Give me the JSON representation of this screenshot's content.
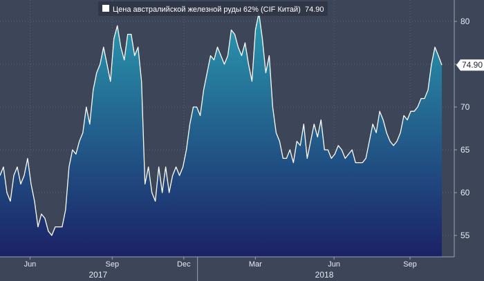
{
  "chart_data": {
    "type": "area",
    "title": "",
    "xlabel": "",
    "ylabel": "",
    "ylim": [
      52.5,
      82.5
    ],
    "yticks": [
      55,
      60,
      65,
      70,
      75,
      80
    ],
    "grid": "dotted",
    "legend": {
      "position": "top-left",
      "label": "Цена австралийской железной руды 62% (CIF Китай)",
      "value": "74.90"
    },
    "last_value_label": "74.90",
    "colors": {
      "background": "#3d4658",
      "area_top": "#2a9ab0",
      "area_bottom": "#1b2166",
      "line": "#ffffff",
      "axis_text": "#e8ebf2"
    },
    "x_ticks": [
      {
        "label": "Jun",
        "t": 0.068
      },
      {
        "label": "Sep",
        "t": 0.254
      },
      {
        "label": "Dec",
        "t": 0.416
      },
      {
        "label": "Mar",
        "t": 0.578
      },
      {
        "label": "Jun",
        "t": 0.756
      },
      {
        "label": "Sep",
        "t": 0.928
      }
    ],
    "year_labels": [
      {
        "label": "2017",
        "t": 0.222
      },
      {
        "label": "2018",
        "t": 0.734
      }
    ],
    "year_separator_t": 0.447,
    "series": [
      {
        "values": [
          62,
          63,
          60,
          59,
          62,
          63,
          61,
          62,
          64,
          61,
          59,
          56,
          57.5,
          57,
          55.5,
          55,
          56,
          56,
          56,
          58,
          63,
          65,
          64.5,
          66,
          67,
          70,
          68,
          72,
          74,
          75,
          77,
          75,
          73,
          78,
          79.5,
          77,
          75.5,
          78.5,
          78.5,
          76,
          77,
          73,
          61,
          63,
          60,
          59,
          63,
          60,
          63,
          60,
          62,
          63,
          62,
          63,
          65,
          68,
          70,
          70,
          69,
          72,
          74,
          76,
          75.5,
          77,
          76,
          75,
          76,
          79,
          78.5,
          77,
          76,
          77.5,
          75,
          73,
          79,
          81,
          78,
          74,
          76,
          70,
          67,
          66,
          64,
          64,
          65,
          63.5,
          66,
          65.5,
          68,
          64,
          66,
          68,
          66.5,
          68.5,
          65,
          65,
          64,
          64.5,
          65.5,
          65,
          64,
          64.5,
          65,
          63.5,
          63.5,
          63.5,
          64,
          66,
          68,
          67,
          69.5,
          68.5,
          67,
          66,
          65.5,
          66,
          67,
          69,
          68.5,
          69.5,
          69.5,
          70,
          71,
          71,
          72,
          75,
          77,
          76,
          74.9
        ]
      }
    ]
  }
}
